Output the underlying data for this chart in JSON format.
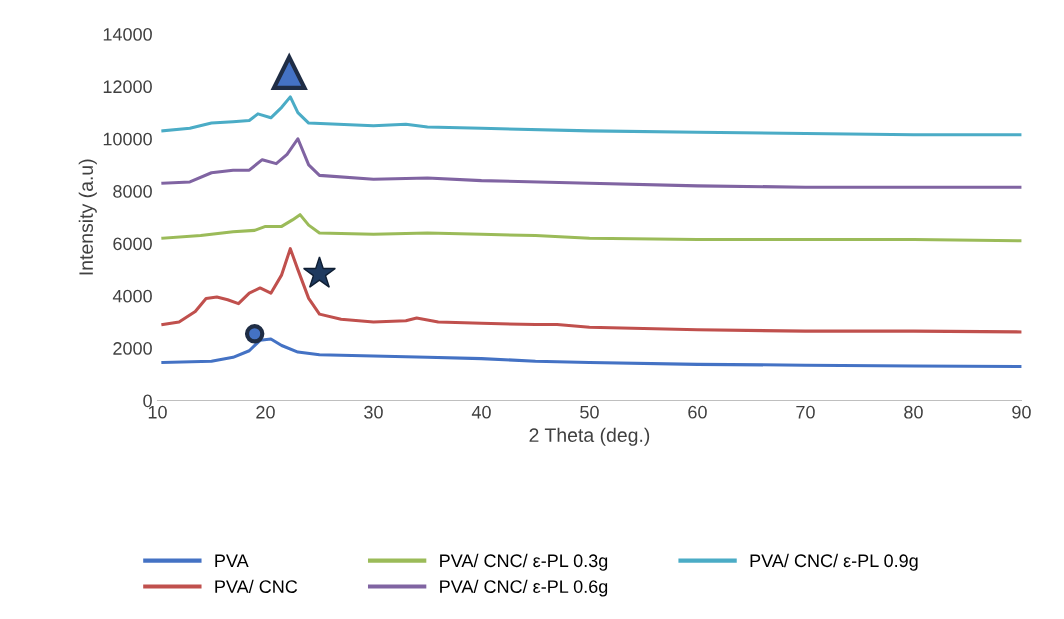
{
  "chart_data": {
    "type": "line",
    "xlabel": "2 Theta (deg.)",
    "ylabel": "Intensity (a.u)",
    "xlim": [
      10,
      90
    ],
    "xticks": [
      10,
      20,
      30,
      40,
      50,
      60,
      70,
      80,
      90
    ],
    "ylim": [
      0,
      14000
    ],
    "yticks": [
      0,
      2000,
      4000,
      6000,
      8000,
      10000,
      12000,
      14000
    ],
    "grid": false,
    "legend": "bottom",
    "marker": "none",
    "line_style": "solid",
    "series": [
      {
        "name": "PVA",
        "color": "#4472c4",
        "x": [
          10.5,
          15,
          17,
          18.5,
          19.5,
          20.5,
          21.5,
          23,
          25,
          30,
          35,
          40,
          45,
          50,
          60,
          70,
          80,
          90
        ],
        "values": [
          1450,
          1500,
          1650,
          1900,
          2300,
          2350,
          2100,
          1850,
          1750,
          1700,
          1650,
          1600,
          1500,
          1450,
          1380,
          1350,
          1320,
          1300
        ]
      },
      {
        "name": "PVA/ CNC",
        "color": "#c0504d",
        "x": [
          10.5,
          12,
          13.5,
          14.5,
          15.5,
          16.5,
          17.5,
          18.5,
          19.5,
          20.5,
          21.5,
          22.3,
          23,
          24,
          25,
          27,
          30,
          33,
          34,
          36,
          40,
          45,
          47,
          50,
          60,
          70,
          80,
          90
        ],
        "values": [
          2900,
          3000,
          3400,
          3900,
          3950,
          3850,
          3700,
          4100,
          4300,
          4100,
          4800,
          5800,
          5000,
          3900,
          3300,
          3100,
          3000,
          3050,
          3150,
          3000,
          2950,
          2900,
          2900,
          2800,
          2700,
          2650,
          2650,
          2620
        ]
      },
      {
        "name": "PVA/ CNC/ ε-PL 0.3g",
        "color": "#9bbb59",
        "x": [
          10.5,
          14,
          17,
          19,
          20,
          21.5,
          22.5,
          23.2,
          24,
          25,
          30,
          35,
          40,
          45,
          50,
          60,
          70,
          80,
          90
        ],
        "values": [
          6200,
          6300,
          6450,
          6500,
          6650,
          6650,
          6900,
          7100,
          6700,
          6400,
          6350,
          6400,
          6350,
          6300,
          6200,
          6150,
          6150,
          6150,
          6100
        ]
      },
      {
        "name": "PVA/ CNC/ ε-PL 0.6g",
        "color": "#8064a2",
        "x": [
          10.5,
          13,
          15,
          17,
          18.5,
          19.7,
          21,
          22,
          23,
          24,
          25,
          30,
          35,
          40,
          50,
          60,
          70,
          80,
          90
        ],
        "values": [
          8300,
          8350,
          8700,
          8800,
          8800,
          9200,
          9050,
          9400,
          10000,
          9000,
          8600,
          8450,
          8500,
          8400,
          8300,
          8200,
          8150,
          8150,
          8150
        ]
      },
      {
        "name": "PVA/ CNC/ ε-PL 0.9g",
        "color": "#4bacc6",
        "x": [
          10.5,
          13,
          15,
          17,
          18.5,
          19.3,
          20.5,
          21.5,
          22.3,
          23,
          24,
          30,
          33,
          35,
          40,
          50,
          60,
          70,
          80,
          90
        ],
        "values": [
          10300,
          10400,
          10600,
          10650,
          10700,
          10950,
          10800,
          11200,
          11600,
          11000,
          10600,
          10500,
          10550,
          10450,
          10400,
          10300,
          10250,
          10200,
          10150,
          10150
        ]
      }
    ]
  }
}
